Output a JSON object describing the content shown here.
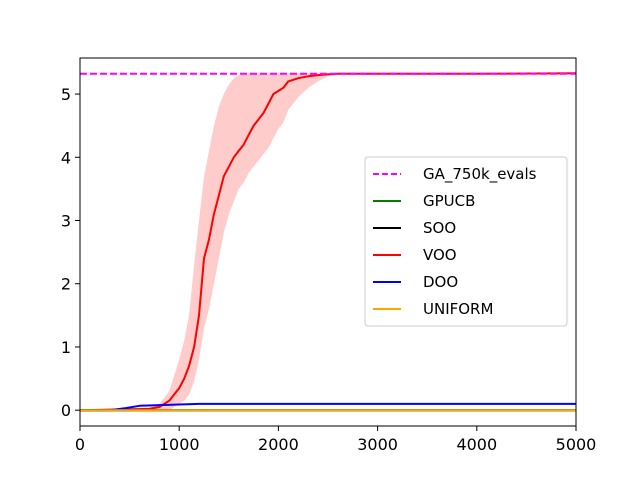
{
  "chart_data": {
    "type": "line",
    "title": "",
    "xlabel": "",
    "ylabel": "",
    "xlim": [
      0,
      5000
    ],
    "ylim": [
      -0.25,
      5.57
    ],
    "x_ticks": [
      0,
      1000,
      2000,
      3000,
      4000,
      5000
    ],
    "y_ticks": [
      0,
      1,
      2,
      3,
      4,
      5
    ],
    "x_tick_labels": [
      "0",
      "1000",
      "2000",
      "3000",
      "4000",
      "5000"
    ],
    "y_tick_labels": [
      "0",
      "1",
      "2",
      "3",
      "4",
      "5"
    ],
    "grid": false,
    "legend_position": "center-right",
    "series": [
      {
        "name": "GA_750k_evals",
        "color": "#ff00ff",
        "dashed": true,
        "x": [
          0,
          5000
        ],
        "y": [
          5.32,
          5.32
        ]
      },
      {
        "name": "GPUCB",
        "color": "#008000",
        "x": [
          0,
          5000
        ],
        "y": [
          0.0,
          0.0
        ]
      },
      {
        "name": "SOO",
        "color": "#000000",
        "x": [
          0,
          5000
        ],
        "y": [
          0.0,
          0.0
        ]
      },
      {
        "name": "VOO",
        "color": "#ff0000",
        "band_color": "#ffcccc",
        "x": [
          0,
          700,
          800,
          900,
          950,
          1000,
          1050,
          1100,
          1150,
          1200,
          1250,
          1300,
          1350,
          1400,
          1450,
          1500,
          1550,
          1600,
          1650,
          1700,
          1750,
          1800,
          1850,
          1900,
          1950,
          2000,
          2050,
          2100,
          2200,
          2300,
          2400,
          2500,
          2600,
          3000,
          4000,
          5000
        ],
        "y": [
          0.0,
          0.02,
          0.05,
          0.15,
          0.25,
          0.35,
          0.5,
          0.7,
          1.0,
          1.5,
          2.4,
          2.7,
          3.1,
          3.4,
          3.7,
          3.85,
          4.0,
          4.1,
          4.2,
          4.35,
          4.5,
          4.6,
          4.7,
          4.85,
          5.0,
          5.05,
          5.1,
          5.2,
          5.25,
          5.28,
          5.3,
          5.31,
          5.32,
          5.32,
          5.32,
          5.33
        ],
        "y_lower": [
          0.0,
          0.0,
          0.0,
          0.0,
          0.05,
          0.1,
          0.15,
          0.25,
          0.45,
          0.8,
          1.3,
          1.6,
          2.0,
          2.4,
          2.8,
          3.1,
          3.3,
          3.5,
          3.6,
          3.75,
          3.85,
          3.95,
          4.05,
          4.15,
          4.3,
          4.45,
          4.55,
          4.75,
          4.95,
          5.1,
          5.2,
          5.28,
          5.31,
          5.32,
          5.32,
          5.33
        ],
        "y_upper": [
          0.0,
          0.05,
          0.1,
          0.3,
          0.55,
          0.8,
          1.1,
          1.5,
          2.3,
          3.0,
          3.7,
          4.1,
          4.5,
          4.8,
          5.0,
          5.15,
          5.25,
          5.3,
          5.32,
          5.33,
          5.33,
          5.33,
          5.33,
          5.33,
          5.33,
          5.33,
          5.33,
          5.33,
          5.33,
          5.33,
          5.33,
          5.33,
          5.33,
          5.33,
          5.33,
          5.33
        ]
      },
      {
        "name": "DOO",
        "color": "#0000ff",
        "x": [
          0,
          300,
          450,
          600,
          800,
          1000,
          1200,
          1350,
          2000,
          3000,
          5000
        ],
        "y": [
          0.0,
          0.0,
          0.03,
          0.07,
          0.08,
          0.09,
          0.1,
          0.1,
          0.1,
          0.1,
          0.1
        ]
      },
      {
        "name": "UNIFORM",
        "color": "#ffa500",
        "x": [
          0,
          5000
        ],
        "y": [
          0.0,
          0.0
        ]
      }
    ]
  }
}
